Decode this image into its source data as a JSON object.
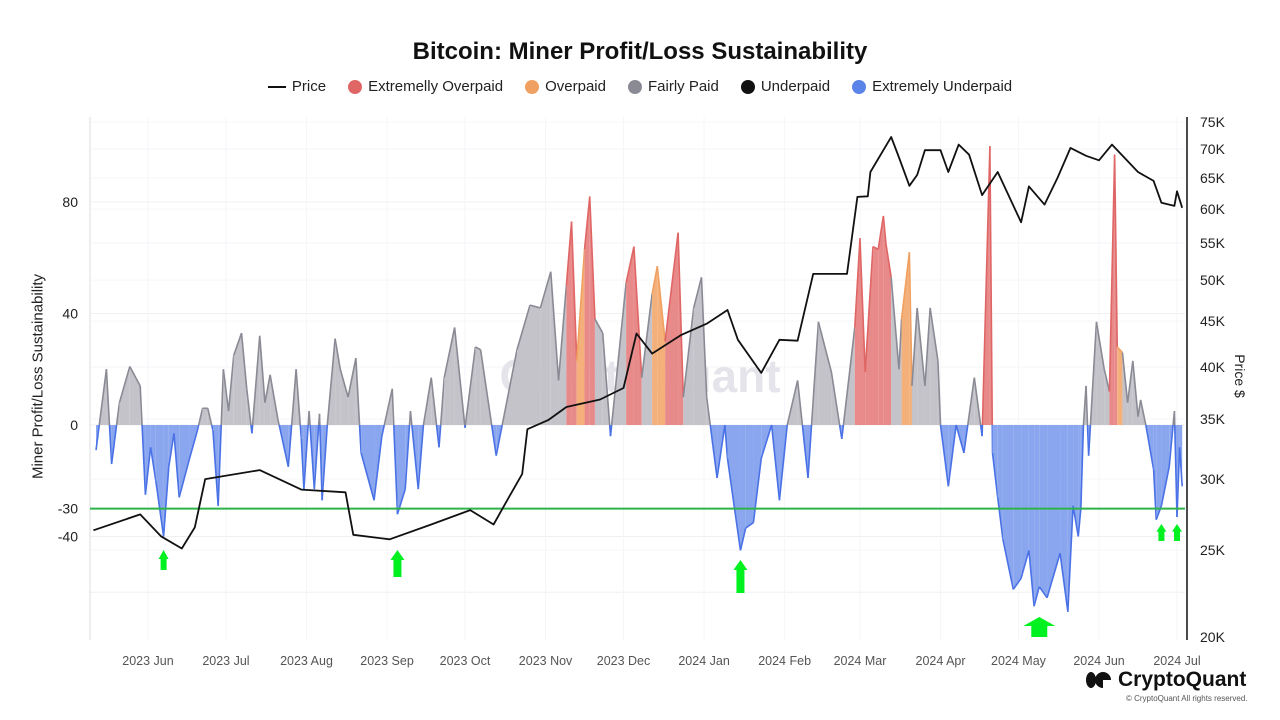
{
  "title": "Bitcoin: Miner Profit/Loss Sustainability",
  "legend": [
    {
      "label": "Price",
      "color": "#111111",
      "shape": "line"
    },
    {
      "label": "Extremelly Overpaid",
      "color": "#e06666",
      "shape": "dot"
    },
    {
      "label": "Overpaid",
      "color": "#f0a060",
      "shape": "dot"
    },
    {
      "label": "Fairly Paid",
      "color": "#8a8a95",
      "shape": "dot"
    },
    {
      "label": "Underpaid",
      "color": "#111111",
      "shape": "dot"
    },
    {
      "label": "Extremely Underpaid",
      "color": "#5b84e8",
      "shape": "dot"
    }
  ],
  "watermark": "CryptoQuant",
  "brand": {
    "name": "CryptoQuant",
    "copyright": "© CryptoQuant All rights reserved."
  },
  "chart_data": {
    "type": "area+line",
    "title": "Bitcoin: Miner Profit/Loss Sustainability",
    "ylabel": "Miner Profit/Loss Sustainability",
    "y2label": "Price $",
    "y2scale": "log",
    "yticks": [
      80,
      40,
      0,
      -30,
      -40
    ],
    "ylim": [
      -76,
      110
    ],
    "y2ticks": [
      "75K",
      "70K",
      "65K",
      "60K",
      "55K",
      "50K",
      "45K",
      "40K",
      "35K",
      "30K",
      "25K",
      "20K"
    ],
    "y2lim": [
      20000,
      75000
    ],
    "xticks": [
      "2023 Jun",
      "2023 Jul",
      "2023 Aug",
      "2023 Sep",
      "2023 Oct",
      "2023 Nov",
      "2023 Dec",
      "2024 Jan",
      "2024 Feb",
      "2024 Mar",
      "2024 Apr",
      "2024 May",
      "2024 Jun",
      "2024 Jul"
    ],
    "xtick_dates": [
      "2023-06-01",
      "2023-07-01",
      "2023-08-01",
      "2023-09-01",
      "2023-10-01",
      "2023-11-01",
      "2023-12-01",
      "2024-01-01",
      "2024-02-01",
      "2024-03-01",
      "2024-04-01",
      "2024-05-01",
      "2024-06-01",
      "2024-07-01"
    ],
    "xlim": [
      "2023-05-10",
      "2024-07-03"
    ],
    "threshold": {
      "value": -30,
      "color": "#2db34a"
    },
    "arrow_dates": [
      "2023-06-07",
      "2023-09-05",
      "2024-01-15",
      "2024-05-09",
      "2024-06-25",
      "2024-07-01"
    ],
    "class_colors": {
      "EO": "#e06666",
      "O": "#f0a060",
      "F": "#8a8a95",
      "EU": "#5b84e8"
    },
    "price": [
      [
        "2023-05-11",
        26300
      ],
      [
        "2023-05-29",
        27400
      ],
      [
        "2023-06-06",
        25900
      ],
      [
        "2023-06-14",
        25100
      ],
      [
        "2023-06-19",
        26500
      ],
      [
        "2023-06-23",
        30000
      ],
      [
        "2023-07-14",
        30700
      ],
      [
        "2023-07-30",
        29200
      ],
      [
        "2023-08-16",
        29000
      ],
      [
        "2023-08-19",
        26000
      ],
      [
        "2023-09-02",
        25700
      ],
      [
        "2023-09-18",
        26700
      ],
      [
        "2023-10-03",
        27700
      ],
      [
        "2023-10-12",
        26700
      ],
      [
        "2023-10-16",
        28000
      ],
      [
        "2023-10-23",
        30400
      ],
      [
        "2023-10-25",
        34100
      ],
      [
        "2023-11-02",
        34900
      ],
      [
        "2023-11-09",
        36100
      ],
      [
        "2023-11-22",
        36800
      ],
      [
        "2023-12-01",
        37900
      ],
      [
        "2023-12-06",
        43600
      ],
      [
        "2023-12-12",
        41400
      ],
      [
        "2023-12-23",
        43400
      ],
      [
        "2024-01-02",
        44700
      ],
      [
        "2024-01-10",
        46300
      ],
      [
        "2024-01-14",
        42900
      ],
      [
        "2024-01-23",
        39400
      ],
      [
        "2024-01-30",
        42900
      ],
      [
        "2024-02-06",
        42800
      ],
      [
        "2024-02-12",
        50800
      ],
      [
        "2024-02-25",
        50800
      ],
      [
        "2024-02-29",
        61900
      ],
      [
        "2024-03-04",
        62000
      ],
      [
        "2024-03-05",
        66000
      ],
      [
        "2024-03-13",
        72200
      ],
      [
        "2024-03-16",
        68500
      ],
      [
        "2024-03-20",
        63700
      ],
      [
        "2024-03-23",
        65500
      ],
      [
        "2024-03-26",
        69800
      ],
      [
        "2024-04-01",
        69800
      ],
      [
        "2024-04-04",
        66000
      ],
      [
        "2024-04-08",
        70800
      ],
      [
        "2024-04-12",
        69000
      ],
      [
        "2024-04-17",
        62200
      ],
      [
        "2024-04-23",
        66000
      ],
      [
        "2024-05-02",
        58000
      ],
      [
        "2024-05-05",
        63600
      ],
      [
        "2024-05-11",
        60700
      ],
      [
        "2024-05-16",
        65000
      ],
      [
        "2024-05-21",
        70200
      ],
      [
        "2024-05-27",
        68800
      ],
      [
        "2024-06-01",
        68000
      ],
      [
        "2024-06-06",
        70800
      ],
      [
        "2024-06-16",
        66000
      ],
      [
        "2024-06-22",
        64500
      ],
      [
        "2024-06-25",
        61000
      ],
      [
        "2024-06-30",
        60500
      ],
      [
        "2024-07-01",
        62800
      ],
      [
        "2024-07-03",
        60200
      ]
    ],
    "sustainability": [
      [
        "2023-05-12",
        -9,
        "EU"
      ],
      [
        "2023-05-16",
        20,
        "F"
      ],
      [
        "2023-05-18",
        -14,
        "EU"
      ],
      [
        "2023-05-21",
        8,
        "F"
      ],
      [
        "2023-05-25",
        21,
        "F"
      ],
      [
        "2023-05-29",
        14,
        "F"
      ],
      [
        "2023-05-31",
        -25,
        "EU"
      ],
      [
        "2023-06-02",
        -8,
        "EU"
      ],
      [
        "2023-06-04",
        -20,
        "EU"
      ],
      [
        "2023-06-07",
        -40,
        "EU"
      ],
      [
        "2023-06-09",
        -15,
        "EU"
      ],
      [
        "2023-06-11",
        -3,
        "EU"
      ],
      [
        "2023-06-13",
        -26,
        "EU"
      ],
      [
        "2023-06-17",
        -12,
        "EU"
      ],
      [
        "2023-06-20",
        -2,
        "EU"
      ],
      [
        "2023-06-22",
        6,
        "F"
      ],
      [
        "2023-06-24",
        6,
        "F"
      ],
      [
        "2023-06-26",
        -2,
        "EU"
      ],
      [
        "2023-06-28",
        -29,
        "EU"
      ],
      [
        "2023-06-30",
        20,
        "F"
      ],
      [
        "2023-07-02",
        5,
        "F"
      ],
      [
        "2023-07-04",
        25,
        "F"
      ],
      [
        "2023-07-07",
        33,
        "F"
      ],
      [
        "2023-07-09",
        13,
        "F"
      ],
      [
        "2023-07-11",
        -3,
        "EU"
      ],
      [
        "2023-07-14",
        32,
        "F"
      ],
      [
        "2023-07-16",
        8,
        "F"
      ],
      [
        "2023-07-18",
        18,
        "F"
      ],
      [
        "2023-07-21",
        2,
        "F"
      ],
      [
        "2023-07-25",
        -15,
        "EU"
      ],
      [
        "2023-07-28",
        20,
        "F"
      ],
      [
        "2023-07-30",
        -5,
        "EU"
      ],
      [
        "2023-07-31",
        -23,
        "EU"
      ],
      [
        "2023-08-02",
        5,
        "F"
      ],
      [
        "2023-08-04",
        -23,
        "EU"
      ],
      [
        "2023-08-06",
        4,
        "F"
      ],
      [
        "2023-08-07",
        -27,
        "EU"
      ],
      [
        "2023-08-09",
        0,
        "F"
      ],
      [
        "2023-08-12",
        31,
        "F"
      ],
      [
        "2023-08-14",
        20,
        "F"
      ],
      [
        "2023-08-17",
        10,
        "F"
      ],
      [
        "2023-08-20",
        24,
        "F"
      ],
      [
        "2023-08-22",
        -10,
        "EU"
      ],
      [
        "2023-08-27",
        -27,
        "EU"
      ],
      [
        "2023-08-30",
        -4,
        "EU"
      ],
      [
        "2023-09-03",
        13,
        "F"
      ],
      [
        "2023-09-05",
        -32,
        "EU"
      ],
      [
        "2023-09-08",
        -23,
        "EU"
      ],
      [
        "2023-09-10",
        5,
        "F"
      ],
      [
        "2023-09-13",
        -23,
        "EU"
      ],
      [
        "2023-09-15",
        0,
        "F"
      ],
      [
        "2023-09-18",
        17,
        "F"
      ],
      [
        "2023-09-21",
        -8,
        "EU"
      ],
      [
        "2023-09-23",
        17,
        "F"
      ],
      [
        "2023-09-27",
        35,
        "F"
      ],
      [
        "2023-10-01",
        -1,
        "EU"
      ],
      [
        "2023-10-05",
        28,
        "F"
      ],
      [
        "2023-10-07",
        27,
        "F"
      ],
      [
        "2023-10-13",
        -11,
        "EU"
      ],
      [
        "2023-10-21",
        27,
        "F"
      ],
      [
        "2023-10-26",
        43,
        "F"
      ],
      [
        "2023-10-30",
        42,
        "F"
      ],
      [
        "2023-11-03",
        55,
        "F"
      ],
      [
        "2023-11-06",
        16,
        "F"
      ],
      [
        "2023-11-09",
        50,
        "F"
      ],
      [
        "2023-11-11",
        73,
        "EO"
      ],
      [
        "2023-11-13",
        23,
        "F"
      ],
      [
        "2023-11-16",
        63,
        "O"
      ],
      [
        "2023-11-18",
        82,
        "EO"
      ],
      [
        "2023-11-20",
        38,
        "F"
      ],
      [
        "2023-11-23",
        33,
        "F"
      ],
      [
        "2023-11-26",
        -4,
        "EU"
      ],
      [
        "2023-12-02",
        51,
        "F"
      ],
      [
        "2023-12-05",
        64,
        "EO"
      ],
      [
        "2023-12-08",
        17,
        "F"
      ],
      [
        "2023-12-12",
        47,
        "F"
      ],
      [
        "2023-12-14",
        57,
        "O"
      ],
      [
        "2023-12-17",
        30,
        "F"
      ],
      [
        "2023-12-22",
        69,
        "EO"
      ],
      [
        "2023-12-24",
        10,
        "F"
      ],
      [
        "2023-12-28",
        42,
        "F"
      ],
      [
        "2023-12-31",
        53,
        "F"
      ],
      [
        "2024-01-02",
        10,
        "F"
      ],
      [
        "2024-01-06",
        -19,
        "EU"
      ],
      [
        "2024-01-09",
        0,
        "F"
      ],
      [
        "2024-01-10",
        -12,
        "EU"
      ],
      [
        "2024-01-15",
        -45,
        "EU"
      ],
      [
        "2024-01-17",
        -37,
        "EU"
      ],
      [
        "2024-01-20",
        -35,
        "EU"
      ],
      [
        "2024-01-23",
        -12,
        "EU"
      ],
      [
        "2024-01-27",
        0,
        "F"
      ],
      [
        "2024-01-30",
        -27,
        "EU"
      ],
      [
        "2024-02-02",
        0,
        "F"
      ],
      [
        "2024-02-06",
        16,
        "F"
      ],
      [
        "2024-02-10",
        -19,
        "EU"
      ],
      [
        "2024-02-14",
        37,
        "F"
      ],
      [
        "2024-02-19",
        19,
        "F"
      ],
      [
        "2024-02-23",
        -5,
        "EU"
      ],
      [
        "2024-02-28",
        35,
        "F"
      ],
      [
        "2024-03-01",
        67,
        "EO"
      ],
      [
        "2024-03-03",
        19,
        "F"
      ],
      [
        "2024-03-06",
        64,
        "EO"
      ],
      [
        "2024-03-08",
        63,
        "O"
      ],
      [
        "2024-03-10",
        75,
        "EO"
      ],
      [
        "2024-03-11",
        65,
        "EO"
      ],
      [
        "2024-03-13",
        53,
        "F"
      ],
      [
        "2024-03-16",
        20,
        "F"
      ],
      [
        "2024-03-17",
        38,
        "F"
      ],
      [
        "2024-03-20",
        62,
        "O"
      ],
      [
        "2024-03-21",
        14,
        "F"
      ],
      [
        "2024-03-23",
        42,
        "F"
      ],
      [
        "2024-03-26",
        14,
        "F"
      ],
      [
        "2024-03-28",
        42,
        "F"
      ],
      [
        "2024-03-31",
        23,
        "F"
      ],
      [
        "2024-04-01",
        0,
        "F"
      ],
      [
        "2024-04-04",
        -22,
        "EU"
      ],
      [
        "2024-04-07",
        0,
        "F"
      ],
      [
        "2024-04-10",
        -10,
        "EU"
      ],
      [
        "2024-04-14",
        17,
        "F"
      ],
      [
        "2024-04-17",
        -4,
        "EU"
      ],
      [
        "2024-04-20",
        100,
        "EO"
      ],
      [
        "2024-04-21",
        -10,
        "EU"
      ],
      [
        "2024-04-23",
        -26,
        "EU"
      ],
      [
        "2024-04-25",
        -41,
        "EU"
      ],
      [
        "2024-04-29",
        -59,
        "EU"
      ],
      [
        "2024-05-02",
        -55,
        "EU"
      ],
      [
        "2024-05-05",
        -45,
        "EU"
      ],
      [
        "2024-05-07",
        -65,
        "EU"
      ],
      [
        "2024-05-09",
        -58,
        "EU"
      ],
      [
        "2024-05-12",
        -62,
        "EU"
      ],
      [
        "2024-05-17",
        -46,
        "EU"
      ],
      [
        "2024-05-20",
        -67,
        "EU"
      ],
      [
        "2024-05-22",
        -29,
        "EU"
      ],
      [
        "2024-05-24",
        -40,
        "EU"
      ],
      [
        "2024-05-25",
        -30,
        "EU"
      ],
      [
        "2024-05-26",
        0,
        "F"
      ],
      [
        "2024-05-27",
        14,
        "F"
      ],
      [
        "2024-05-28",
        -11,
        "EU"
      ],
      [
        "2024-05-31",
        37,
        "F"
      ],
      [
        "2024-06-03",
        20,
        "F"
      ],
      [
        "2024-06-05",
        12,
        "F"
      ],
      [
        "2024-06-07",
        97,
        "EO"
      ],
      [
        "2024-06-08",
        28,
        "O"
      ],
      [
        "2024-06-10",
        26,
        "F"
      ],
      [
        "2024-06-12",
        8,
        "F"
      ],
      [
        "2024-06-14",
        23,
        "F"
      ],
      [
        "2024-06-16",
        3,
        "F"
      ],
      [
        "2024-06-17",
        9,
        "F"
      ],
      [
        "2024-06-19",
        0,
        "F"
      ],
      [
        "2024-06-22",
        -16,
        "EU"
      ],
      [
        "2024-06-23",
        -34,
        "EU"
      ],
      [
        "2024-06-25",
        -29,
        "EU"
      ],
      [
        "2024-06-28",
        -15,
        "EU"
      ],
      [
        "2024-06-30",
        5,
        "F"
      ],
      [
        "2024-07-01",
        -33,
        "EU"
      ],
      [
        "2024-07-02",
        -8,
        "EU"
      ],
      [
        "2024-07-03",
        -22,
        "EU"
      ]
    ]
  }
}
